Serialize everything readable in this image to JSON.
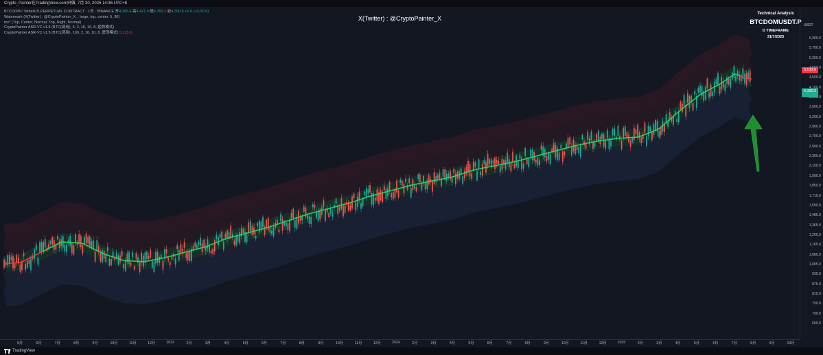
{
  "header": {
    "text": "Crypto_Painter在TradingView.com只做, 7月 30, 2025 14:36 UTC+8"
  },
  "legend": {
    "line1_prefix": "BTCDOM / TetherUS PERPETUAL CONTRACT · 1天 · BINANCE",
    "open_label": "开",
    "open_value": "4,389.4",
    "high_label": "高",
    "high_value": "4,421.0",
    "low_label": "低",
    "low_value": "4,359.1",
    "close_label": "收",
    "close_value": "4,390.6 +0.6 (+0.01%)",
    "line2": "Watermark (X(Twitter) : @CryptoPainter_X, , large, top, center, 5, 30)",
    "line3": "too\" (Top, Center, Normal, Top, Right, Normal)",
    "line4": "CryptoPainter ASR-VC v1.5 (BTC(调用), 5, 2, 16, 10, 8, 趋势模式)",
    "line5_prefix": "CryptoPainter ASR-VC v1.5 (BTC(调用), 100, 2, 16, 10, 8, 震荡模式)",
    "line5_value": "5,133.0"
  },
  "watermark": "X(Twitter) : @CryptoPainter_X",
  "info_panel": {
    "title": "Technical Analysis",
    "symbol": "BTCDOMUSDT.P",
    "timeframe": "D TIMEFRAME",
    "date": "31/7/2025"
  },
  "price_scale": {
    "currency": "USDT",
    "labels": [
      "6,300.0",
      "5,700.0",
      "5,200.0",
      "4,900.0",
      "4,500.0",
      "4,100.0",
      "3,800.0",
      "3,500.0",
      "3,200.0",
      "2,900.0",
      "2,700.0",
      "2,500.0",
      "2,300.0",
      "2,150.0",
      "1,990.0",
      "1,850.0",
      "1,710.0",
      "1,590.0",
      "1,485.0",
      "1,365.0",
      "1,265.0",
      "1,165.0",
      "1,085.0",
      "1,005.0",
      "935.0",
      "875.0",
      "815.0",
      "759.0",
      "709.0",
      "659.0"
    ],
    "tags": [
      {
        "text": "5,133.0",
        "color": "#f23645"
      },
      {
        "text": "4,390.6",
        "color": "#22ab94"
      }
    ]
  },
  "time_scale": {
    "labels": [
      "5月",
      "6月",
      "7月",
      "8月",
      "9月",
      "10月",
      "11月",
      "12月",
      "2023",
      "2月",
      "3月",
      "4月",
      "5月",
      "6月",
      "7月",
      "8月",
      "9月",
      "10月",
      "11月",
      "12月",
      "2024",
      "2月",
      "3月",
      "4月",
      "5月",
      "6月",
      "7月",
      "8月",
      "9月",
      "10月",
      "11月",
      "12月",
      "2025",
      "2月",
      "3月",
      "4月",
      "5月",
      "6月",
      "7月",
      "8月",
      "9月",
      "10月"
    ]
  },
  "footer": {
    "brand": "TradingView"
  },
  "colors": {
    "background": "#131722",
    "up": "#26a69a",
    "down": "#ef5350",
    "trend_up": "#2ed15a",
    "trend_down": "#e63c3c",
    "arrow": "#1e8f2e"
  }
}
